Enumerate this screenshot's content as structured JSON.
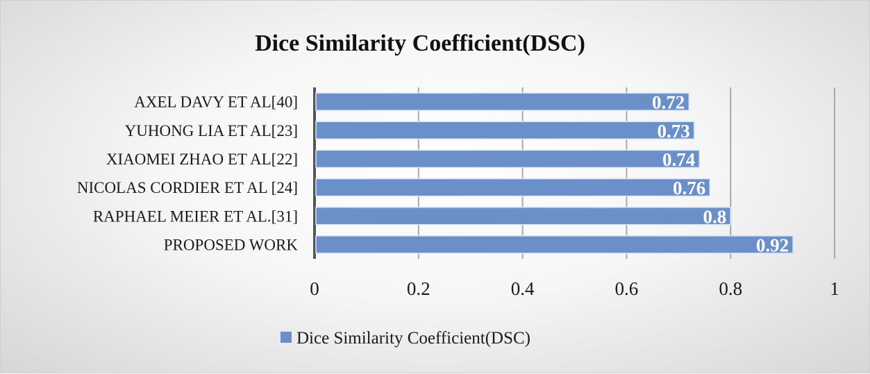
{
  "chart_data": {
    "type": "bar",
    "orientation": "horizontal",
    "title": "Dice Similarity Coefficient(DSC)",
    "categories": [
      "AXEL DAVY ET AL[40]",
      "YUHONG LIA ET AL[23]",
      "XIAOMEI ZHAO ET AL[22]",
      "NICOLAS CORDIER ET AL [24]",
      "RAPHAEL MEIER ET AL.[31]",
      "PROPOSED WORK"
    ],
    "series": [
      {
        "name": "Dice Similarity Coefficient(DSC)",
        "values": [
          0.72,
          0.73,
          0.74,
          0.76,
          0.8,
          0.92
        ],
        "data_labels": [
          "0.72",
          "0.73",
          "0.74",
          "0.76",
          "0.8",
          "0.92"
        ]
      }
    ],
    "xlim": [
      0,
      1
    ],
    "x_ticks": [
      "0",
      "0.2",
      "0.4",
      "0.6",
      "0.8",
      "1"
    ],
    "grid": true,
    "legend_position": "bottom",
    "colors": {
      "bar": "#6a8fc9",
      "bar_edge": "#dce5f3",
      "grid": "#a9a9a9",
      "axis": "#555555"
    }
  }
}
